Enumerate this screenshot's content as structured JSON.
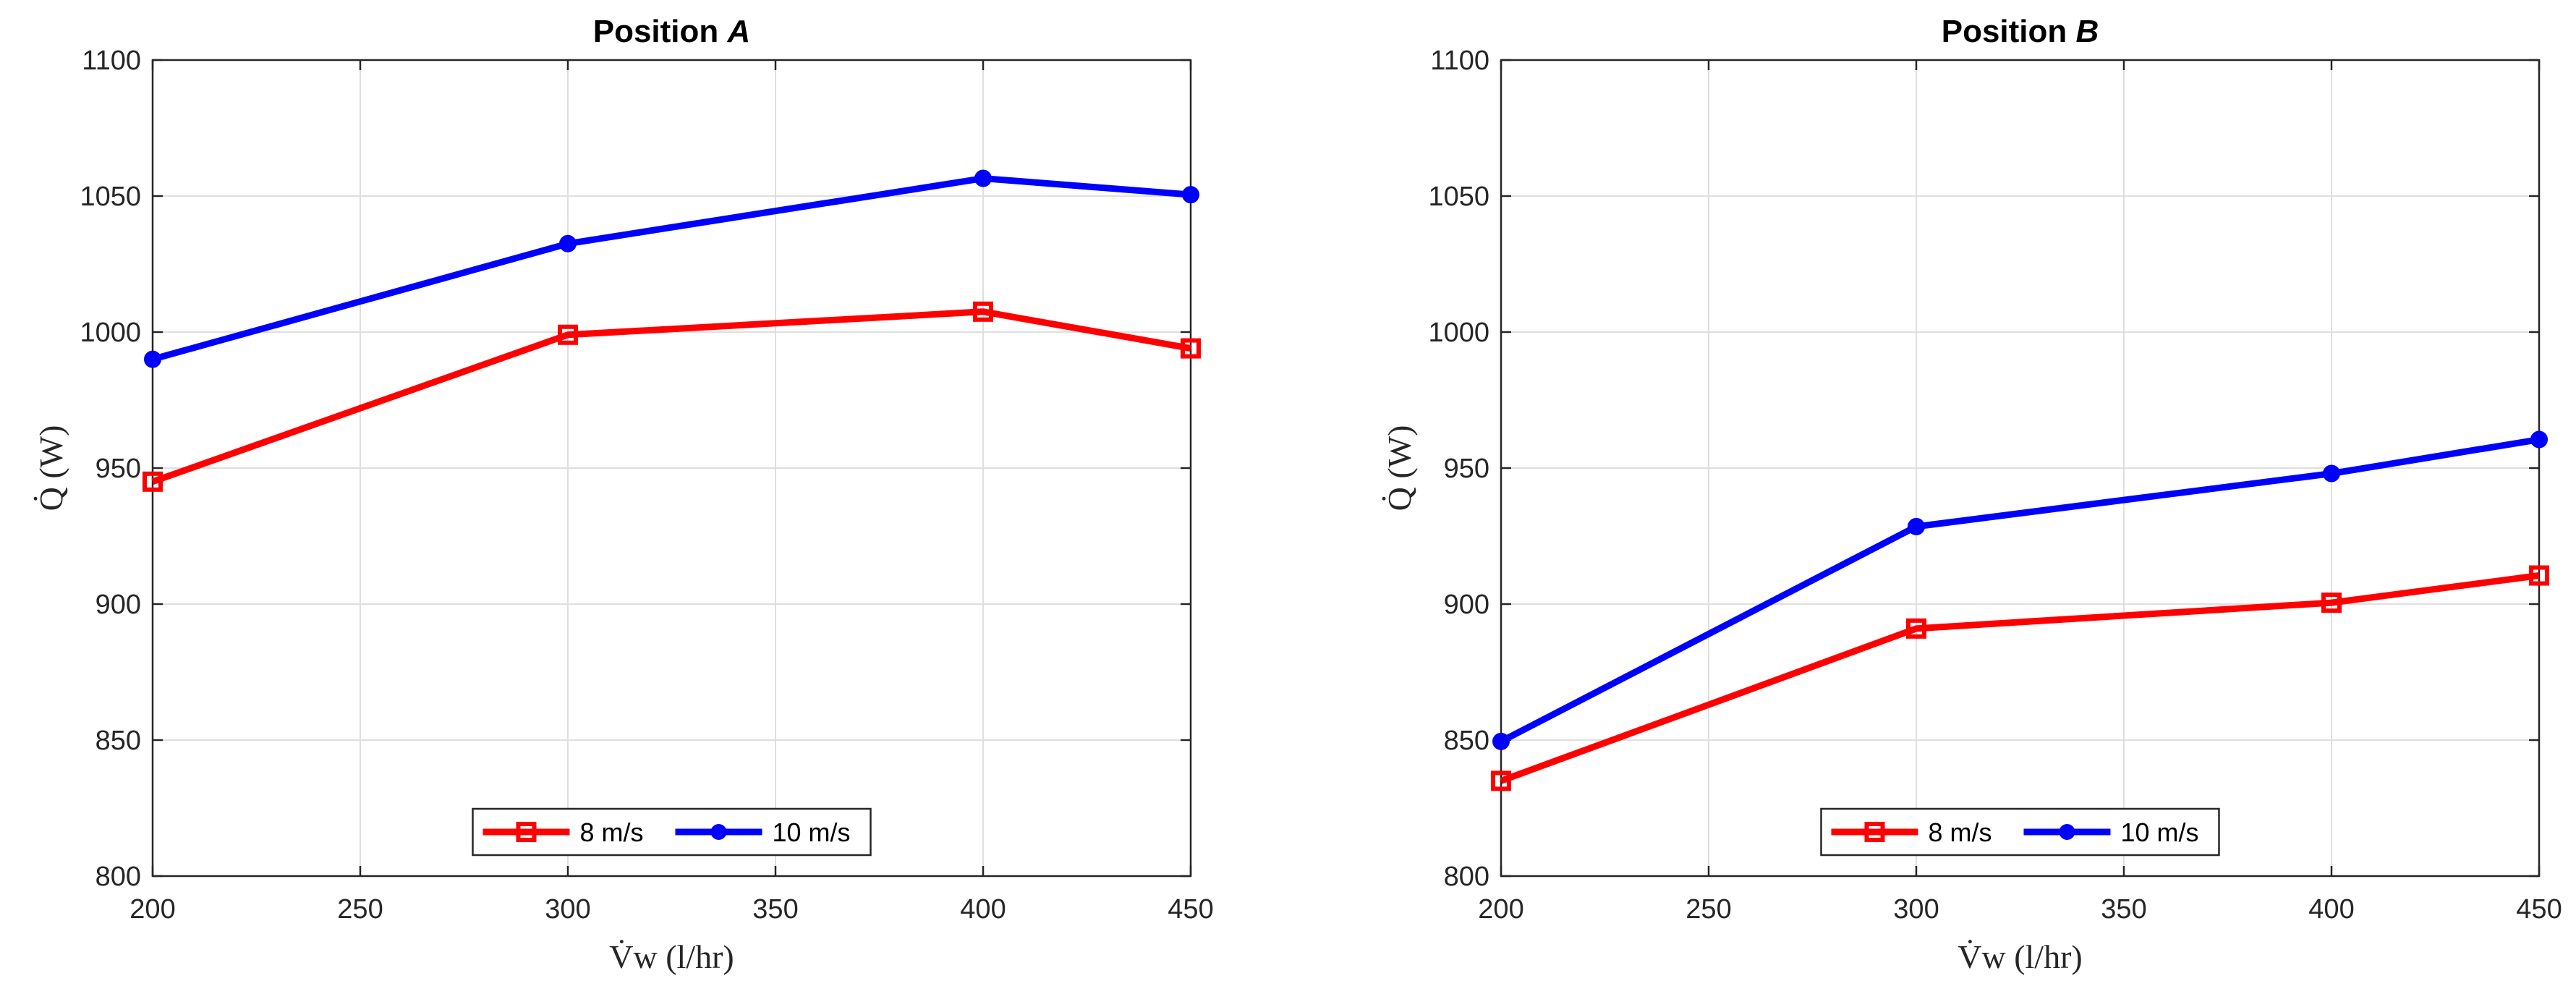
{
  "chart_data": [
    {
      "type": "line",
      "title_prefix": "Position ",
      "title_letter": "A",
      "xlabel": "V̇w (l/hr)",
      "ylabel": "Q̇ (W)",
      "x": [
        200,
        300,
        400,
        450
      ],
      "xlim": [
        200,
        450
      ],
      "ylim": [
        800,
        1100
      ],
      "xticks": [
        "200",
        "250",
        "300",
        "350",
        "400",
        "450"
      ],
      "yticks": [
        "800",
        "850",
        "900",
        "950",
        "1000",
        "1050",
        "1100"
      ],
      "grid": true,
      "legend_position": "bottom-center",
      "series": [
        {
          "name": "8 m/s",
          "color": "#ff0000",
          "marker": "square",
          "values": [
            945,
            999,
            1007.5,
            994
          ]
        },
        {
          "name": "10 m/s",
          "color": "#0000ff",
          "marker": "circle",
          "values": [
            990,
            1032.5,
            1056.5,
            1050.5
          ]
        }
      ]
    },
    {
      "type": "line",
      "title_prefix": "Position ",
      "title_letter": "B",
      "xlabel": "V̇w (l/hr)",
      "ylabel": "Q̇ (W)",
      "x": [
        200,
        300,
        400,
        450
      ],
      "xlim": [
        200,
        450
      ],
      "ylim": [
        800,
        1100
      ],
      "xticks": [
        "200",
        "250",
        "300",
        "350",
        "400",
        "450"
      ],
      "yticks": [
        "800",
        "850",
        "900",
        "950",
        "1000",
        "1050",
        "1100"
      ],
      "grid": true,
      "legend_position": "bottom-center",
      "series": [
        {
          "name": "8 m/s",
          "color": "#ff0000",
          "marker": "square",
          "values": [
            835,
            891,
            900.5,
            910.5
          ]
        },
        {
          "name": "10 m/s",
          "color": "#0000ff",
          "marker": "circle",
          "values": [
            849.5,
            928.5,
            948,
            960.5
          ]
        }
      ]
    }
  ]
}
